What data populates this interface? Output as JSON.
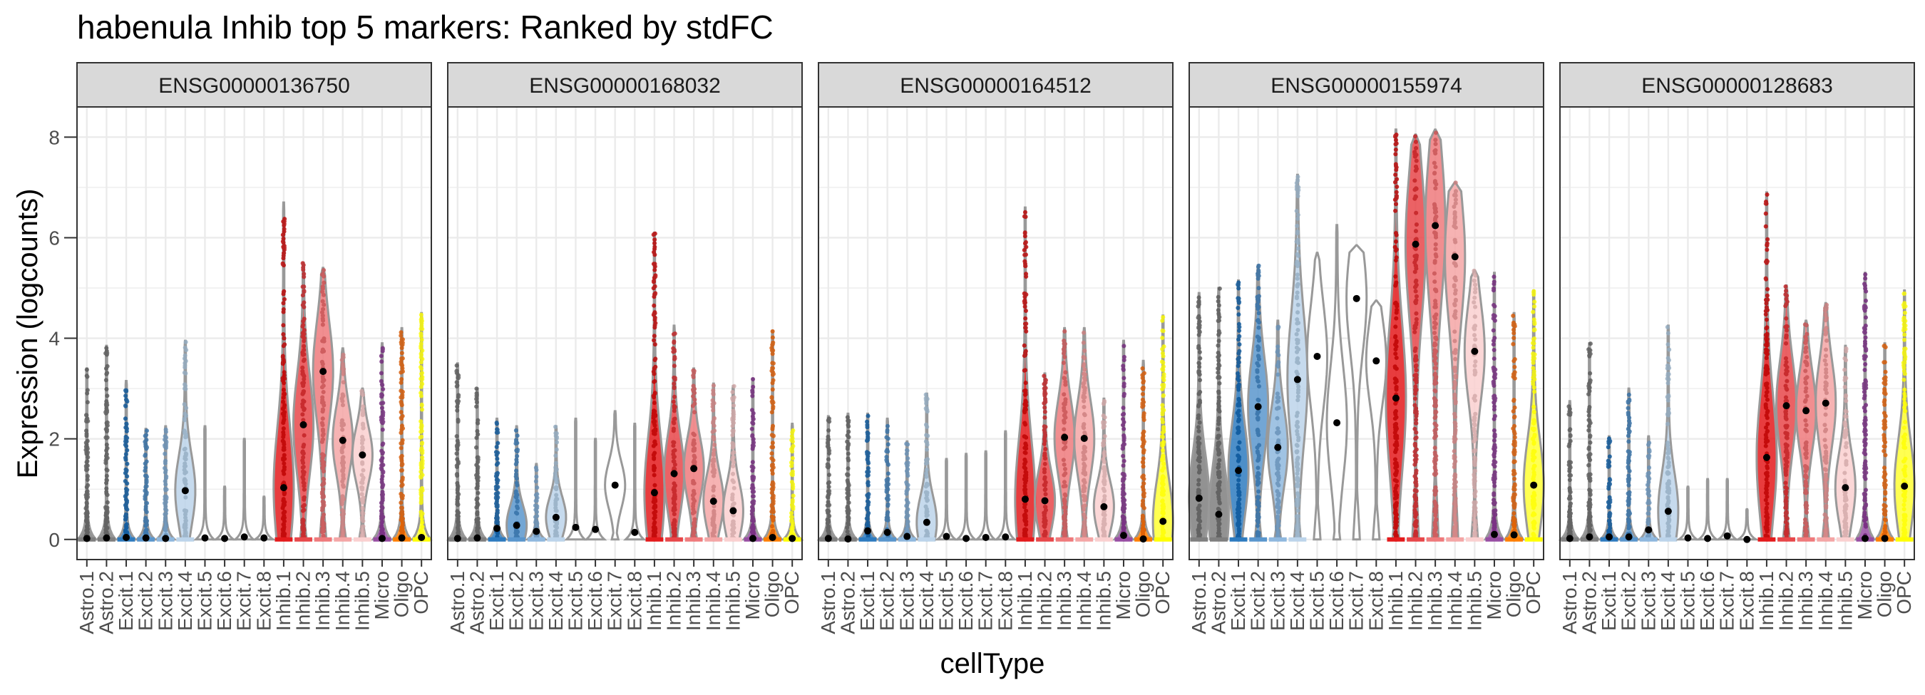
{
  "chart_data": {
    "type": "violin",
    "title": "habenula Inhib top 5 markers: Ranked by stdFC",
    "xlabel": "cellType",
    "ylabel": "Expression (logcounts)",
    "ylim": [
      -0.4,
      8.6
    ],
    "y_ticks": [
      0,
      2,
      4,
      6,
      8
    ],
    "grid": true,
    "categories": [
      "Astro.1",
      "Astro.2",
      "Excit.1",
      "Excit.2",
      "Excit.3",
      "Excit.4",
      "Excit.5",
      "Excit.6",
      "Excit.7",
      "Excit.8",
      "Inhib.1",
      "Inhib.2",
      "Inhib.3",
      "Inhib.4",
      "Inhib.5",
      "Micro",
      "Oligo",
      "OPC"
    ],
    "category_colors": [
      "#7f7f7f",
      "#7f7f7f",
      "#2e7bbf",
      "#5a96cd",
      "#8fb8de",
      "#bcd4ea",
      "#ffffff",
      "#ffffff",
      "#ffffff",
      "#ffffff",
      "#e41a1c",
      "#e8474a",
      "#ef7a7c",
      "#f4a6a6",
      "#fad0d0",
      "#984ea3",
      "#ff7f00",
      "#ffff33"
    ],
    "panels": [
      {
        "gene": "ENSG00000136750",
        "max": [
          3.4,
          3.85,
          3.15,
          2.2,
          2.25,
          3.95,
          2.25,
          1.05,
          2.0,
          0.85,
          6.7,
          5.5,
          5.4,
          3.8,
          3.0,
          3.9,
          4.2,
          4.5
        ],
        "mean": [
          0.02,
          0.03,
          0.04,
          0.03,
          0.02,
          0.97,
          0.03,
          0.02,
          0.05,
          0.03,
          1.03,
          2.28,
          3.34,
          1.97,
          1.68,
          0.02,
          0.03,
          0.04
        ]
      },
      {
        "gene": "ENSG00000168032",
        "max": [
          3.5,
          3.0,
          2.4,
          2.25,
          1.5,
          2.25,
          2.4,
          2.0,
          2.55,
          2.3,
          6.1,
          4.25,
          3.4,
          3.1,
          3.05,
          3.2,
          4.15,
          2.3
        ],
        "mean": [
          0.02,
          0.03,
          0.22,
          0.28,
          0.16,
          0.44,
          0.24,
          0.2,
          1.08,
          0.14,
          0.93,
          1.31,
          1.41,
          0.76,
          0.57,
          0.02,
          0.04,
          0.02
        ]
      },
      {
        "gene": "ENSG00000164512",
        "max": [
          2.45,
          2.5,
          2.5,
          2.4,
          1.95,
          2.9,
          1.6,
          1.7,
          1.75,
          2.15,
          6.6,
          3.3,
          4.2,
          4.2,
          2.8,
          3.95,
          3.55,
          4.45
        ],
        "mean": [
          0.02,
          0.01,
          0.17,
          0.14,
          0.06,
          0.34,
          0.06,
          0.02,
          0.04,
          0.05,
          0.8,
          0.77,
          2.03,
          2.01,
          0.65,
          0.08,
          0.01,
          0.36
        ]
      },
      {
        "gene": "ENSG00000155974",
        "max": [
          4.9,
          5.0,
          5.15,
          5.45,
          4.35,
          7.25,
          5.7,
          6.25,
          5.85,
          4.75,
          8.15,
          8.05,
          8.15,
          7.1,
          5.35,
          5.3,
          4.5,
          4.95
        ],
        "mean": [
          0.82,
          0.5,
          1.37,
          2.64,
          1.83,
          3.18,
          3.64,
          2.32,
          4.79,
          3.55,
          2.81,
          5.87,
          6.24,
          5.62,
          3.74,
          0.1,
          0.09,
          1.08
        ]
      },
      {
        "gene": "ENSG00000128683",
        "max": [
          2.75,
          3.9,
          2.05,
          3.0,
          2.05,
          4.25,
          1.05,
          1.2,
          1.2,
          0.6,
          6.9,
          5.05,
          4.35,
          4.7,
          3.85,
          5.3,
          3.9,
          4.95
        ],
        "mean": [
          0.02,
          0.05,
          0.05,
          0.05,
          0.19,
          0.56,
          0.03,
          0.02,
          0.07,
          0.0,
          1.63,
          2.66,
          2.56,
          2.71,
          1.03,
          0.02,
          0.02,
          1.06
        ]
      }
    ]
  }
}
